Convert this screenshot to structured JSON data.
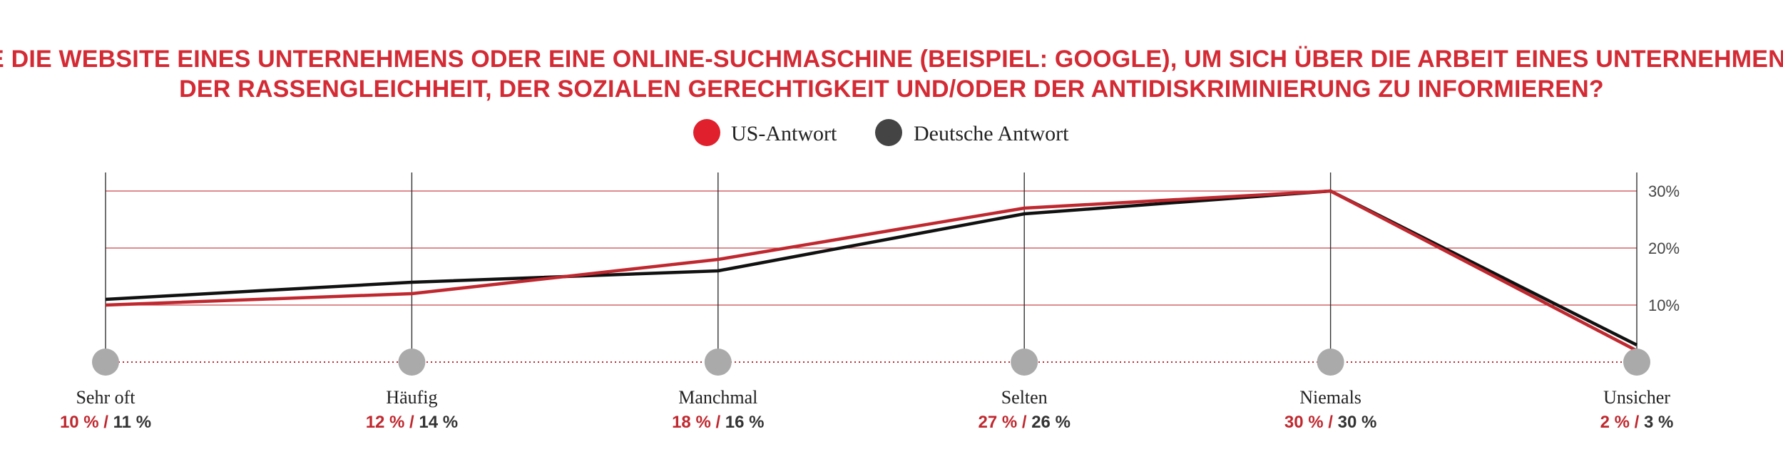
{
  "chart_data": {
    "type": "line",
    "title_lines": [
      "WIE OFT BESUCHEN SIE DIE WEBSITE EINES UNTERNEHMENS ODER EINE ONLINE-SUCHMASCHINE (BEISPIEL: GOOGLE), UM SICH ÜBER DIE ARBEIT EINES UNTERNEHMENS ZUR VERBESSERUNG",
      "DER RASSENGLEICHHEIT, DER SOZIALEN GERECHTIGKEIT UND/ODER DER ANTIDISKRIMINIERUNG ZU INFORMIEREN?"
    ],
    "categories": [
      "Sehr oft",
      "Häufig",
      "Manchmal",
      "Selten",
      "Niemals",
      "Unsicher"
    ],
    "series": [
      {
        "name": "US-Antwort",
        "color": "#c0282f",
        "values": [
          10,
          12,
          18,
          27,
          30,
          2
        ],
        "labels": [
          "10 %",
          "12 %",
          "18 %",
          "27 %",
          "30 %",
          "2 %"
        ]
      },
      {
        "name": "Deutsche Antwort",
        "color": "#111111",
        "values": [
          11,
          14,
          16,
          26,
          30,
          3
        ],
        "labels": [
          "11 %",
          "14 %",
          "16 %",
          "26 %",
          "30 %",
          "3 %"
        ]
      }
    ],
    "label_separator": "/",
    "y_ticks": [
      {
        "value": 10,
        "label": "10%"
      },
      {
        "value": 20,
        "label": "20%"
      },
      {
        "value": 30,
        "label": "30%"
      }
    ],
    "ylim": [
      0,
      30
    ],
    "grid": true,
    "legend_position": "top-center",
    "colors": {
      "title": "#d42a34",
      "grid": "#c0282f",
      "marker": "#aaaaaa",
      "legend_us": "#e0202c",
      "legend_de": "#444444"
    }
  }
}
